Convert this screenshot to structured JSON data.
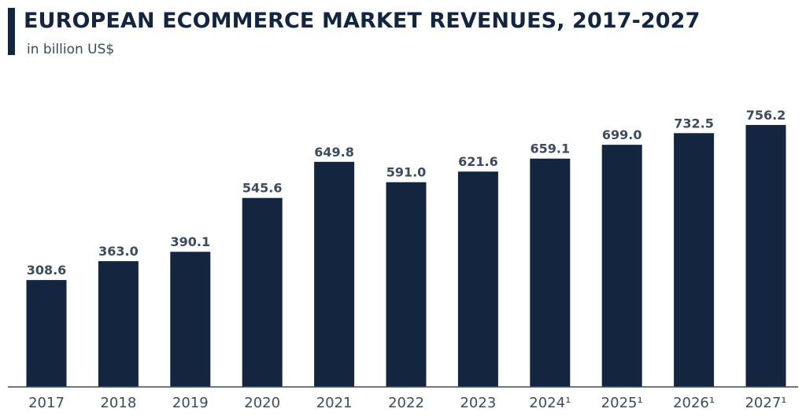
{
  "chart_data": {
    "type": "bar",
    "title": "EUROPEAN ECOMMERCE MARKET REVENUES, 2017-2027",
    "subtitle": "in billion US$",
    "categories": [
      "2017",
      "2018",
      "2019",
      "2020",
      "2021",
      "2022",
      "2023",
      "2024¹",
      "2025¹",
      "2026¹",
      "2027¹"
    ],
    "values": [
      308.6,
      363.0,
      390.1,
      545.6,
      649.8,
      591.0,
      621.6,
      659.1,
      699.0,
      732.5,
      756.2
    ],
    "value_labels": [
      "308.6",
      "363.0",
      "390.1",
      "545.6",
      "649.8",
      "591.0",
      "621.6",
      "659.1",
      "699.0",
      "732.5",
      "756.2"
    ],
    "ylim": [
      0,
      800
    ],
    "grid": false,
    "legend": "none",
    "colors": {
      "bar": "#14263f",
      "text": "#3d4b5f",
      "title": "#14263f"
    }
  }
}
